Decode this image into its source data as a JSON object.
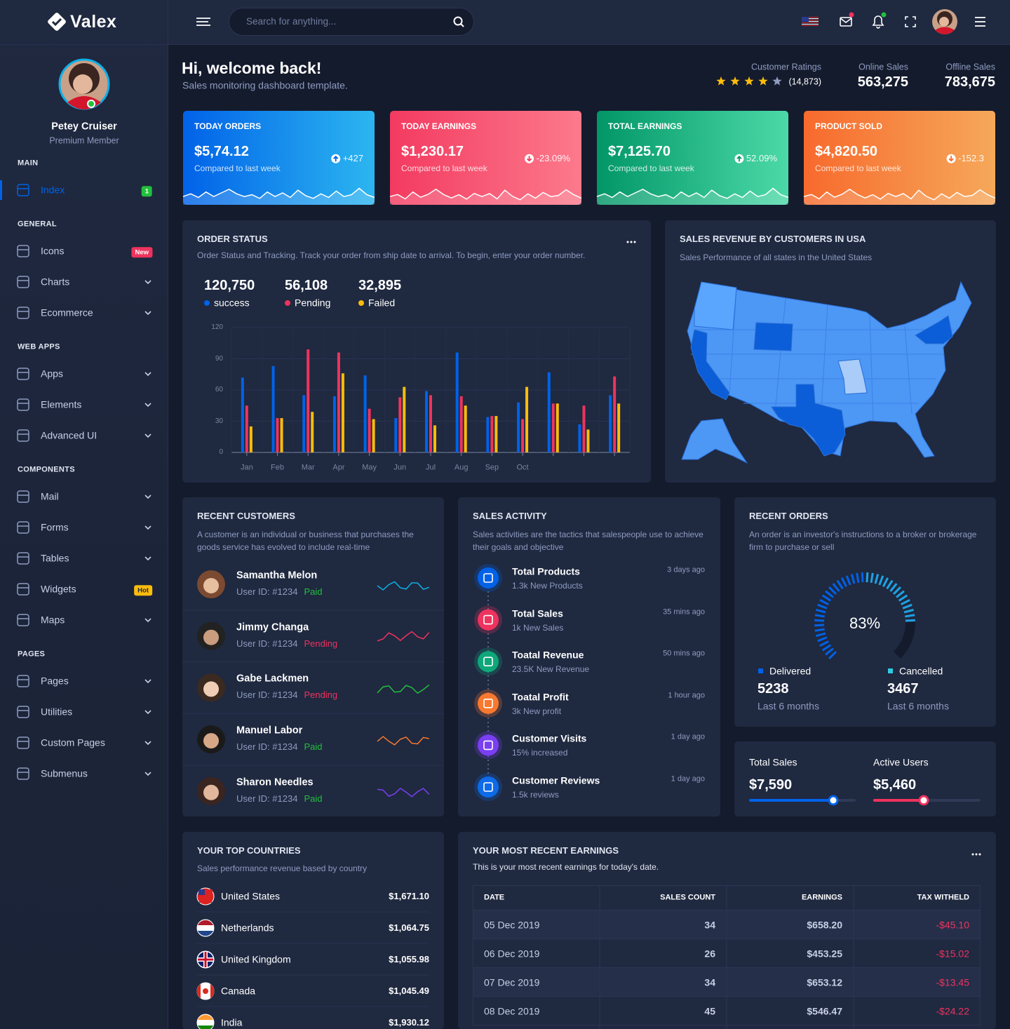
{
  "brand": "Valex",
  "sidebar": {
    "user": {
      "name": "Petey Cruiser",
      "role": "Premium Member"
    },
    "sections": [
      {
        "title": "MAIN",
        "items": [
          {
            "label": "Index",
            "badge": "1"
          }
        ]
      },
      {
        "title": "GENERAL",
        "items": [
          {
            "label": "Icons",
            "badge": "New"
          },
          {
            "label": "Charts"
          },
          {
            "label": "Ecommerce"
          }
        ]
      },
      {
        "title": "WEB APPS",
        "items": [
          {
            "label": "Apps"
          },
          {
            "label": "Elements"
          },
          {
            "label": "Advanced UI"
          }
        ]
      },
      {
        "title": "COMPONENTS",
        "items": [
          {
            "label": "Mail"
          },
          {
            "label": "Forms"
          },
          {
            "label": "Tables"
          },
          {
            "label": "Widgets",
            "badge": "Hot"
          },
          {
            "label": "Maps"
          }
        ]
      },
      {
        "title": "PAGES",
        "items": [
          {
            "label": "Pages"
          },
          {
            "label": "Utilities"
          },
          {
            "label": "Custom Pages"
          },
          {
            "label": "Submenus"
          }
        ]
      }
    ]
  },
  "header": {
    "search_placeholder": "Search for anything..."
  },
  "welcome": {
    "title": "Hi, welcome back!",
    "subtitle": "Sales monitoring dashboard template.",
    "ratings": {
      "label": "Customer Ratings",
      "count": "(14,873)"
    },
    "online": {
      "label": "Online Sales",
      "value": "563,275"
    },
    "offline": {
      "label": "Offline Sales",
      "value": "783,675"
    }
  },
  "stat_cards": [
    {
      "title": "TODAY ORDERS",
      "value": "$5,74.12",
      "note": "Compared to last week",
      "change": "+427"
    },
    {
      "title": "TODAY EARNINGS",
      "value": "$1,230.17",
      "note": "Compared to last week",
      "change": "-23.09%"
    },
    {
      "title": "TOTAL EARNINGS",
      "value": "$7,125.70",
      "note": "Compared to last week",
      "change": "52.09%"
    },
    {
      "title": "PRODUCT SOLD",
      "value": "$4,820.50",
      "note": "Compared to last week",
      "change": "-152.3"
    }
  ],
  "order_status": {
    "title": "ORDER STATUS",
    "subtitle": "Order Status and Tracking. Track your order from ship date to arrival. To begin, enter your order number.",
    "totals": [
      "120,750",
      "56,108",
      "32,895"
    ]
  },
  "chart_data": {
    "type": "bar",
    "categories": [
      "Jan",
      "Feb",
      "Mar",
      "Apr",
      "May",
      "Jun",
      "Jul",
      "Aug",
      "Sep",
      "Oct",
      null,
      null,
      null
    ],
    "series": [
      {
        "name": "success",
        "color": "#0162e8",
        "values": [
          72,
          83,
          55,
          54,
          74,
          33,
          59,
          96,
          34,
          48,
          77,
          27,
          55
        ]
      },
      {
        "name": "Pending",
        "color": "#ee335e",
        "values": [
          45,
          33,
          99,
          96,
          42,
          53,
          55,
          54,
          35,
          32,
          47,
          45,
          73
        ]
      },
      {
        "name": "Failed",
        "color": "#fbbc0b",
        "values": [
          25,
          33,
          39,
          76,
          32,
          63,
          26,
          45,
          35,
          63,
          47,
          22,
          47
        ]
      }
    ],
    "ylim": [
      0,
      120
    ],
    "yticks": [
      0,
      30,
      60,
      90,
      120
    ],
    "grid": true
  },
  "map": {
    "title": "SALES REVENUE BY CUSTOMERS IN USA",
    "subtitle": "Sales Performance of all states in the United States"
  },
  "recent_customers": {
    "title": "RECENT CUSTOMERS",
    "subtitle": "A customer is an individual or business that purchases the goods service has evolved to include real-time",
    "customers": [
      {
        "name": "Samantha Melon",
        "id": "User ID: #1234",
        "status": "Paid"
      },
      {
        "name": "Jimmy Changa",
        "id": "User ID: #1234",
        "status": "Pending"
      },
      {
        "name": "Gabe Lackmen",
        "id": "User ID: #1234",
        "status": "Pending"
      },
      {
        "name": "Manuel Labor",
        "id": "User ID: #1234",
        "status": "Paid"
      },
      {
        "name": "Sharon Needles",
        "id": "User ID: #1234",
        "status": "Paid"
      }
    ]
  },
  "sales_activity": {
    "title": "SALES ACTIVITY",
    "subtitle": "Sales activities are the tactics that salespeople use to achieve their goals and objective",
    "items": [
      {
        "title": "Total Products",
        "detail": "1.3k New Products",
        "time": "3 days ago"
      },
      {
        "title": "Total Sales",
        "detail": "1k New Sales",
        "time": "35 mins ago"
      },
      {
        "title": "Toatal Revenue",
        "detail": "23.5K New Revenue",
        "time": "50 mins ago"
      },
      {
        "title": "Toatal Profit",
        "detail": "3k New profit",
        "time": "1 hour ago"
      },
      {
        "title": "Customer Visits",
        "detail": "15% increased",
        "time": "1 day ago"
      },
      {
        "title": "Customer Reviews",
        "detail": "1.5k reviews",
        "time": "1 day ago"
      }
    ]
  },
  "recent_orders": {
    "title": "RECENT ORDERS",
    "subtitle": "An order is an investor's instructions to a broker or brokerage firm to purchase or sell",
    "gauge": {
      "value": 83,
      "label": "83%"
    },
    "delivered": {
      "label": "Delivered",
      "value": "5238",
      "period": "Last 6 months"
    },
    "cancelled": {
      "label": "Cancelled",
      "value": "3467",
      "period": "Last 6 months"
    }
  },
  "totals": {
    "total_sales": {
      "label": "Total Sales",
      "value": "$7,590"
    },
    "active_users": {
      "label": "Active Users",
      "value": "$5,460"
    }
  },
  "top_countries": {
    "title": "YOUR TOP COUNTRIES",
    "subtitle": "Sales performance revenue based by country",
    "rows": [
      {
        "name": "United States",
        "value": "$1,671.10"
      },
      {
        "name": "Netherlands",
        "value": "$1,064.75"
      },
      {
        "name": "United Kingdom",
        "value": "$1,055.98"
      },
      {
        "name": "Canada",
        "value": "$1,045.49"
      },
      {
        "name": "India",
        "value": "$1,930.12"
      }
    ]
  },
  "earnings": {
    "title": "YOUR MOST RECENT EARNINGS",
    "subtitle": "This is your most recent earnings for today's date.",
    "columns": [
      "DATE",
      "SALES COUNT",
      "EARNINGS",
      "TAX WITHELD"
    ],
    "rows": [
      [
        "05 Dec 2019",
        "34",
        "$658.20",
        "-$45.10"
      ],
      [
        "06 Dec 2019",
        "26",
        "$453.25",
        "-$15.02"
      ],
      [
        "07 Dec 2019",
        "34",
        "$653.12",
        "-$13.45"
      ],
      [
        "08 Dec 2019",
        "45",
        "$546.47",
        "-$24.22"
      ]
    ]
  }
}
